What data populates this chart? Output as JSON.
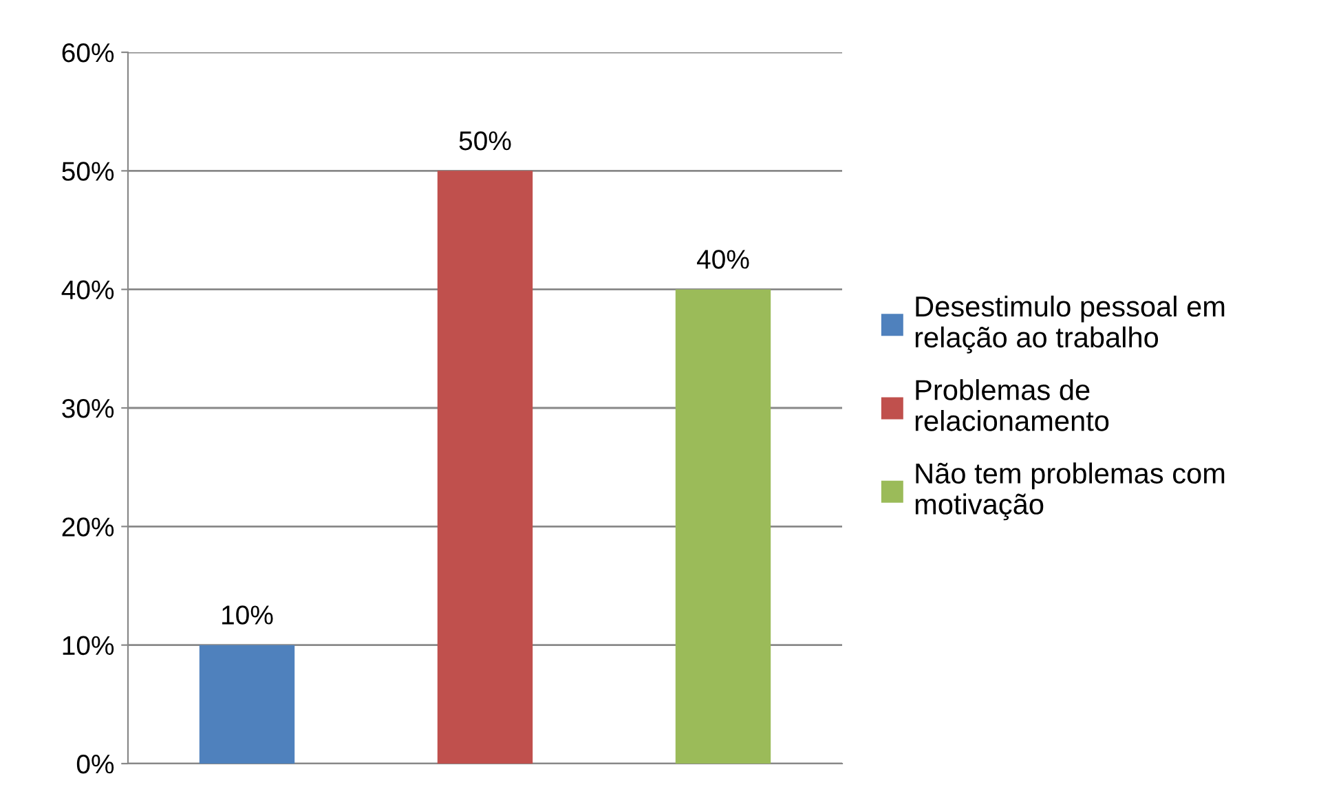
{
  "chart_data": {
    "type": "bar",
    "categories": [
      null,
      null,
      null
    ],
    "series": [
      {
        "name": "Desestimulo pessoal em relação ao trabalho",
        "color": "#4f81bd",
        "values": [
          10,
          null,
          null
        ],
        "value_labels": [
          "10%",
          null,
          null
        ]
      },
      {
        "name": "Problemas de relacionamento",
        "color": "#c0504d",
        "values": [
          null,
          50,
          null
        ],
        "value_labels": [
          null,
          "50%",
          null
        ]
      },
      {
        "name": "Não tem problemas com motivação",
        "color": "#9bbb59",
        "values": [
          null,
          null,
          40
        ],
        "value_labels": [
          null,
          null,
          "40%"
        ]
      }
    ],
    "ylim": [
      0,
      60
    ],
    "yticks": [
      {
        "value": 0,
        "label": "0%"
      },
      {
        "value": 10,
        "label": "10%"
      },
      {
        "value": 20,
        "label": "20%"
      },
      {
        "value": 30,
        "label": "30%"
      },
      {
        "value": 40,
        "label": "40%"
      },
      {
        "value": 50,
        "label": "50%"
      },
      {
        "value": 60,
        "label": "60%"
      }
    ],
    "grid": "y",
    "legend": "right"
  }
}
